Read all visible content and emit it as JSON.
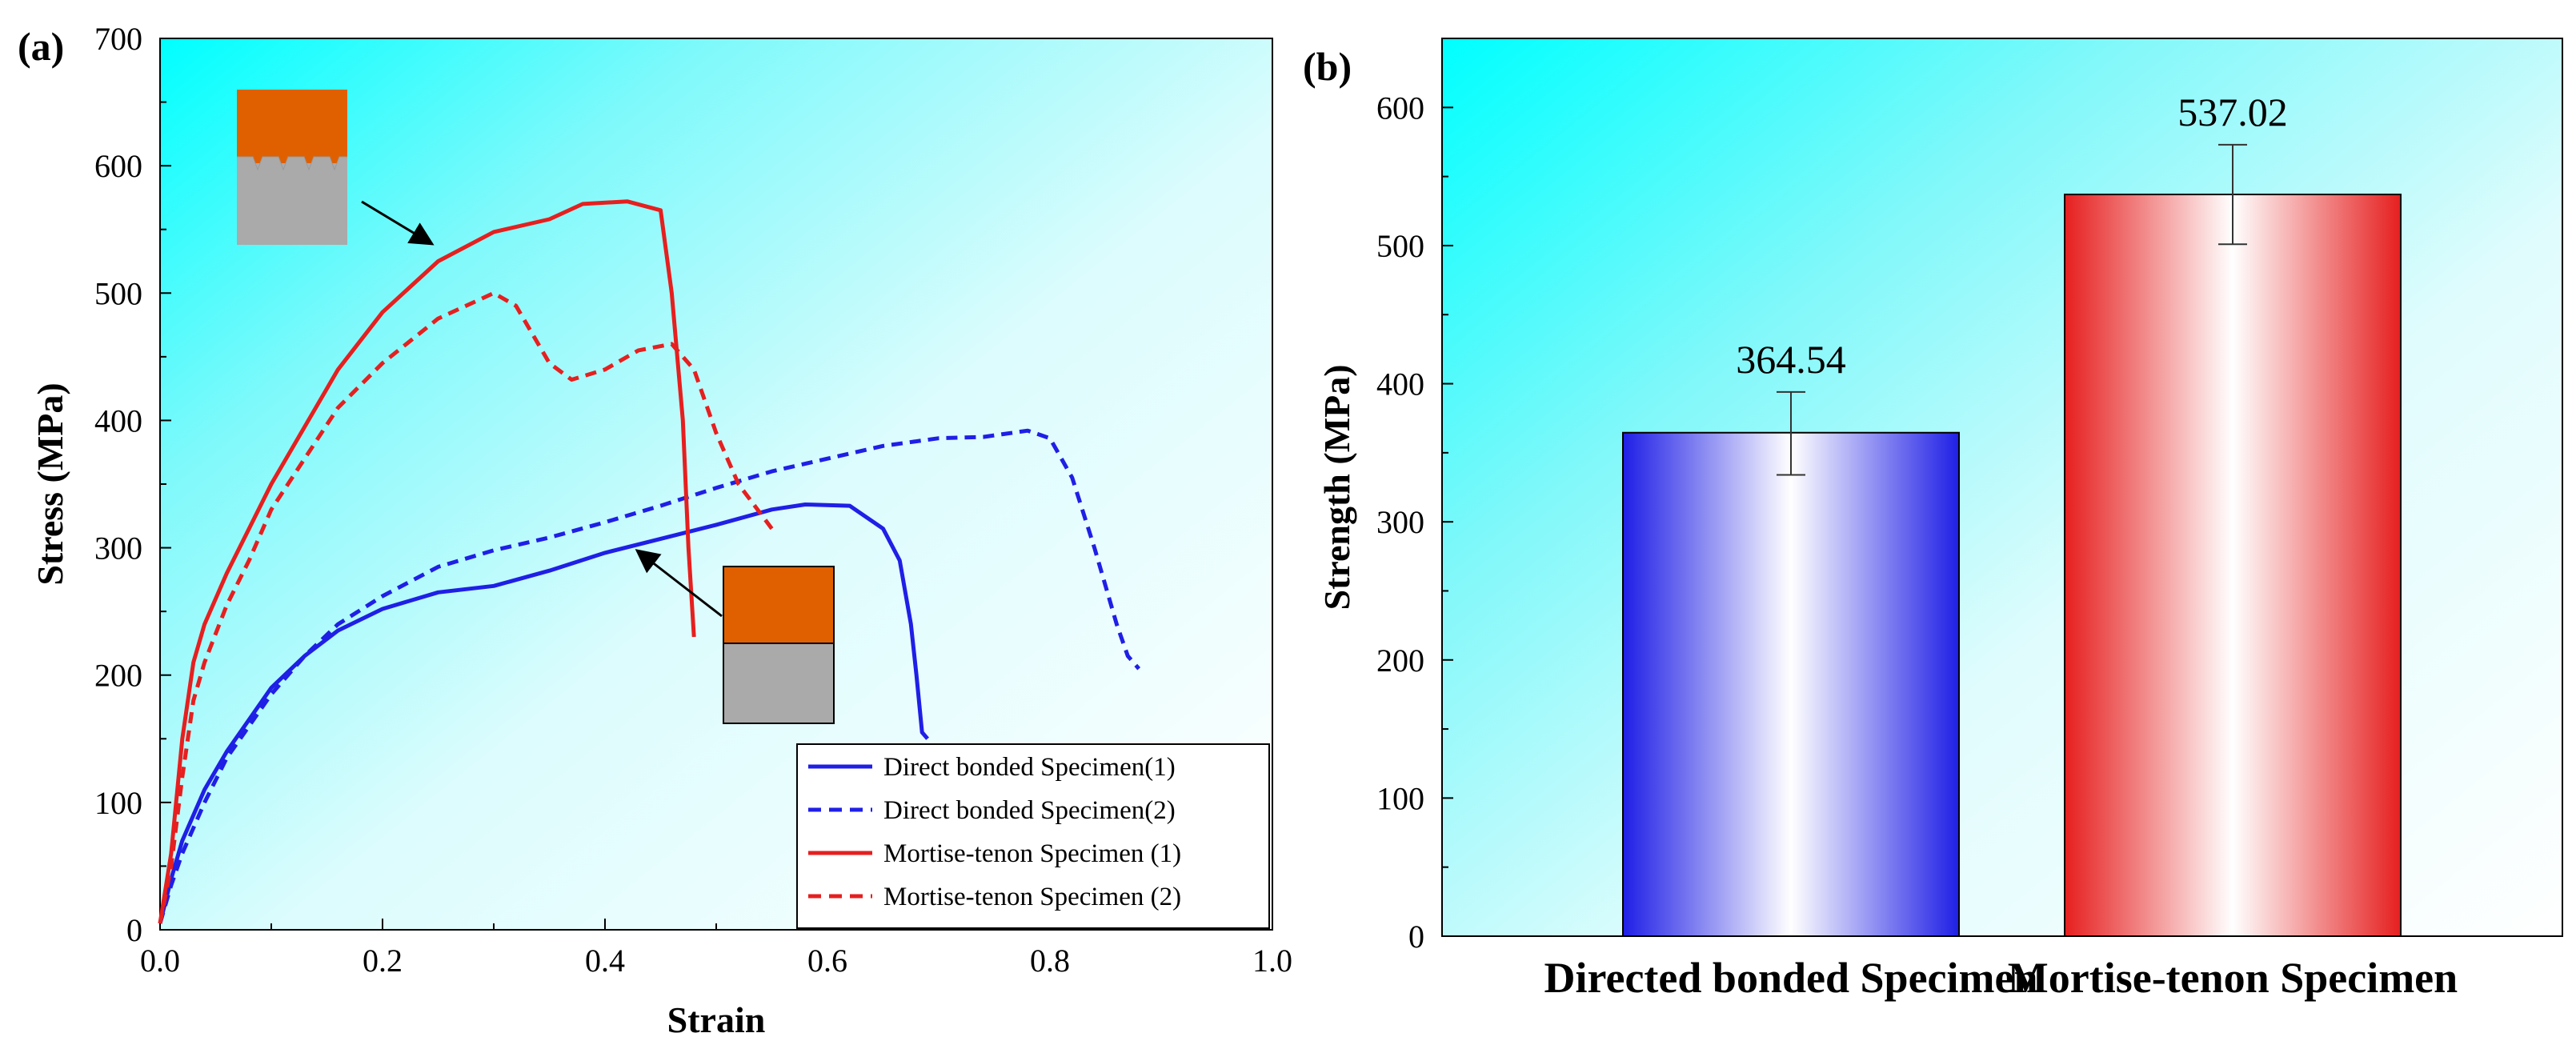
{
  "chart_data": [
    {
      "panel": "(a)",
      "type": "line",
      "xlabel": "Strain",
      "ylabel": "Stress (MPa)",
      "xlim": [
        0.0,
        1.0
      ],
      "ylim": [
        0,
        700
      ],
      "xticks": [
        "0.0",
        "0.2",
        "0.4",
        "0.6",
        "0.8",
        "1.0"
      ],
      "yticks": [
        "0",
        "100",
        "200",
        "300",
        "400",
        "500",
        "600",
        "700"
      ],
      "legend_position": "bottom-right",
      "series": [
        {
          "name": "Direct bonded Specimen(1)",
          "color": "#1f1fe6",
          "style": "solid",
          "points": [
            [
              0.0,
              5
            ],
            [
              0.01,
              40
            ],
            [
              0.02,
              70
            ],
            [
              0.04,
              110
            ],
            [
              0.06,
              140
            ],
            [
              0.08,
              165
            ],
            [
              0.1,
              190
            ],
            [
              0.13,
              215
            ],
            [
              0.16,
              235
            ],
            [
              0.2,
              252
            ],
            [
              0.25,
              265
            ],
            [
              0.3,
              270
            ],
            [
              0.35,
              282
            ],
            [
              0.4,
              296
            ],
            [
              0.45,
              307
            ],
            [
              0.5,
              318
            ],
            [
              0.55,
              330
            ],
            [
              0.58,
              334
            ],
            [
              0.62,
              333
            ],
            [
              0.65,
              315
            ],
            [
              0.665,
              290
            ],
            [
              0.675,
              240
            ],
            [
              0.68,
              200
            ],
            [
              0.685,
              155
            ],
            [
              0.69,
              150
            ]
          ]
        },
        {
          "name": "Direct bonded Specimen(2)",
          "color": "#1f1fe6",
          "style": "dashed",
          "points": [
            [
              0.0,
              5
            ],
            [
              0.01,
              35
            ],
            [
              0.02,
              60
            ],
            [
              0.04,
              100
            ],
            [
              0.06,
              135
            ],
            [
              0.08,
              160
            ],
            [
              0.1,
              185
            ],
            [
              0.13,
              215
            ],
            [
              0.16,
              240
            ],
            [
              0.2,
              262
            ],
            [
              0.25,
              285
            ],
            [
              0.3,
              298
            ],
            [
              0.35,
              308
            ],
            [
              0.4,
              320
            ],
            [
              0.45,
              333
            ],
            [
              0.5,
              347
            ],
            [
              0.55,
              360
            ],
            [
              0.6,
              370
            ],
            [
              0.65,
              380
            ],
            [
              0.7,
              386
            ],
            [
              0.74,
              387
            ],
            [
              0.78,
              392
            ],
            [
              0.8,
              386
            ],
            [
              0.82,
              355
            ],
            [
              0.84,
              300
            ],
            [
              0.85,
              270
            ],
            [
              0.86,
              240
            ],
            [
              0.87,
              215
            ],
            [
              0.88,
              205
            ]
          ]
        },
        {
          "name": "Mortise-tenon Specimen (1)",
          "color": "#e61f1f",
          "style": "solid",
          "points": [
            [
              0.0,
              5
            ],
            [
              0.01,
              60
            ],
            [
              0.02,
              150
            ],
            [
              0.03,
              210
            ],
            [
              0.04,
              240
            ],
            [
              0.06,
              280
            ],
            [
              0.08,
              315
            ],
            [
              0.1,
              350
            ],
            [
              0.13,
              395
            ],
            [
              0.16,
              440
            ],
            [
              0.2,
              485
            ],
            [
              0.25,
              525
            ],
            [
              0.3,
              548
            ],
            [
              0.35,
              558
            ],
            [
              0.38,
              570
            ],
            [
              0.42,
              572
            ],
            [
              0.45,
              565
            ],
            [
              0.46,
              500
            ],
            [
              0.47,
              400
            ],
            [
              0.475,
              300
            ],
            [
              0.48,
              230
            ]
          ]
        },
        {
          "name": "Mortise-tenon Specimen (2)",
          "color": "#e61f1f",
          "style": "dashed",
          "points": [
            [
              0.0,
              5
            ],
            [
              0.01,
              50
            ],
            [
              0.02,
              120
            ],
            [
              0.03,
              180
            ],
            [
              0.04,
              210
            ],
            [
              0.06,
              255
            ],
            [
              0.08,
              290
            ],
            [
              0.1,
              330
            ],
            [
              0.13,
              370
            ],
            [
              0.16,
              410
            ],
            [
              0.2,
              445
            ],
            [
              0.25,
              480
            ],
            [
              0.3,
              500
            ],
            [
              0.32,
              490
            ],
            [
              0.35,
              445
            ],
            [
              0.37,
              432
            ],
            [
              0.4,
              440
            ],
            [
              0.43,
              455
            ],
            [
              0.46,
              460
            ],
            [
              0.48,
              440
            ],
            [
              0.5,
              390
            ],
            [
              0.52,
              350
            ],
            [
              0.55,
              315
            ]
          ]
        }
      ],
      "insets": [
        {
          "name": "Mortise-tenon joint schematic",
          "colors": {
            "top": "#e06000",
            "bottom": "#aaaaaa"
          }
        },
        {
          "name": "Direct bonded joint schematic",
          "colors": {
            "top": "#e06000",
            "bottom": "#aaaaaa"
          }
        }
      ]
    },
    {
      "panel": "(b)",
      "type": "bar",
      "ylabel": "Strength (MPa)",
      "ylim": [
        0,
        650
      ],
      "yticks": [
        "0",
        "100",
        "200",
        "300",
        "400",
        "500",
        "600"
      ],
      "categories": [
        "Directed bonded Specimen",
        "Mortise-tenon Specimen"
      ],
      "values": [
        364.54,
        537.02
      ],
      "value_labels": [
        "364.54",
        "537.02"
      ],
      "error": [
        [
          334,
          394
        ],
        [
          501,
          573
        ]
      ],
      "bar_colors": [
        "#1f1fe6",
        "#e61f1f"
      ]
    }
  ]
}
